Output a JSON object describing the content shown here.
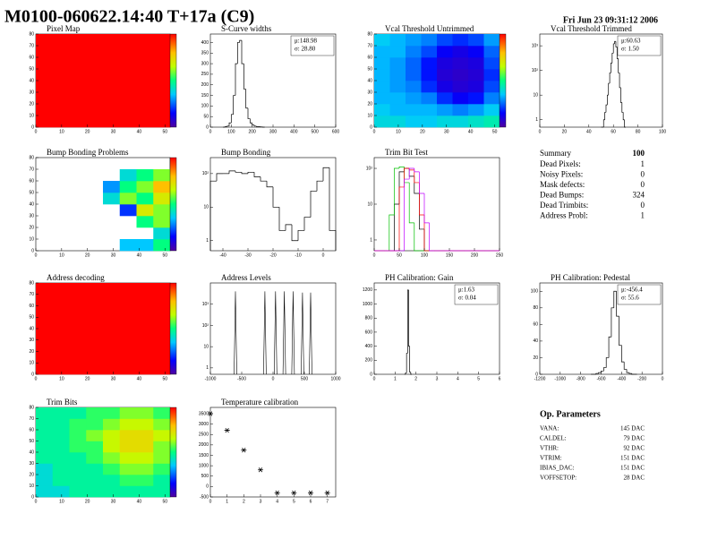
{
  "header": {
    "title": "M0100-060622.14:40 T+17a (C9)",
    "date": "Fri Jun 23 09:31:12 2006"
  },
  "chart_data": [
    {
      "type": "heatmap",
      "title": "Pixel Map",
      "xlim": [
        0,
        52
      ],
      "ylim": [
        0,
        80
      ],
      "xticks": [
        0,
        10,
        20,
        30,
        40,
        50
      ],
      "yticks": [
        0,
        10,
        20,
        30,
        40,
        50,
        60,
        70,
        80
      ],
      "zlim": [
        0,
        10
      ],
      "matrix": [
        [
          10
        ]
      ]
    },
    {
      "type": "histogram",
      "title": "S-Curve widths",
      "xlim": [
        0,
        600
      ],
      "ylim": [
        0,
        440
      ],
      "xticks": [
        0,
        100,
        200,
        300,
        400,
        500,
        600
      ],
      "yticks": [
        0,
        50,
        100,
        150,
        200,
        250,
        300,
        350,
        400
      ],
      "log": false,
      "stats": [
        "μ:148.98",
        "σ: 28.80"
      ],
      "bins": [
        60,
        70,
        80,
        90,
        100,
        110,
        120,
        130,
        140,
        150,
        160,
        170,
        180,
        190,
        200,
        210,
        220,
        230,
        240,
        250,
        260
      ],
      "values": [
        0,
        2,
        5,
        20,
        60,
        150,
        300,
        400,
        410,
        300,
        180,
        90,
        40,
        20,
        10,
        5,
        3,
        2,
        1,
        0
      ]
    },
    {
      "type": "heatmap",
      "title": "Vcal Threshold Untrimmed",
      "xlim": [
        0,
        52
      ],
      "ylim": [
        0,
        80
      ],
      "xticks": [
        0,
        10,
        20,
        30,
        40,
        50
      ],
      "yticks": [
        0,
        10,
        20,
        30,
        40,
        50,
        60,
        70,
        80
      ],
      "zlim": [
        70,
        250
      ],
      "matrix": [
        [
          140,
          140,
          135,
          135,
          140,
          140,
          145,
          150
        ],
        [
          135,
          130,
          130,
          130,
          125,
          120,
          125,
          135
        ],
        [
          130,
          130,
          125,
          120,
          105,
          95,
          100,
          120
        ],
        [
          130,
          125,
          120,
          105,
          90,
          85,
          88,
          110
        ],
        [
          130,
          125,
          115,
          100,
          85,
          82,
          85,
          105
        ],
        [
          130,
          125,
          115,
          100,
          88,
          85,
          88,
          110
        ],
        [
          130,
          130,
          120,
          110,
          95,
          90,
          95,
          115
        ],
        [
          135,
          130,
          125,
          120,
          110,
          105,
          110,
          125
        ]
      ]
    },
    {
      "type": "histogram",
      "title": "Vcal Threshold Trimmed",
      "xlim": [
        0,
        100
      ],
      "ylim": [
        0.5,
        3000
      ],
      "xticks": [
        0,
        20,
        40,
        60,
        80,
        100
      ],
      "yticks": [
        1,
        10,
        {
          "value": 100,
          "label": "10²"
        },
        {
          "value": 1000,
          "label": "10³"
        }
      ],
      "log": true,
      "stats": [
        "μ:60.63",
        "σ: 1.50"
      ],
      "bins": [
        50,
        51,
        52,
        53,
        54,
        55,
        56,
        57,
        58,
        59,
        60,
        61,
        62,
        63,
        64,
        65,
        66,
        67,
        68,
        69,
        70
      ],
      "values": [
        0,
        0,
        1,
        2,
        4,
        10,
        30,
        80,
        200,
        500,
        1200,
        1500,
        900,
        300,
        80,
        20,
        5,
        2,
        1,
        0
      ]
    },
    {
      "type": "heatmap",
      "title": "Bump Bonding Problems",
      "xlim": [
        0,
        52
      ],
      "ylim": [
        0,
        80
      ],
      "xticks": [
        0,
        10,
        20,
        30,
        40,
        50
      ],
      "yticks": [
        0,
        10,
        20,
        30,
        40,
        50,
        60,
        70,
        80
      ],
      "zlim": [
        0,
        1
      ],
      "matrix": [
        [
          null,
          null,
          null,
          null,
          null,
          0.35,
          0.35,
          0.5
        ],
        [
          null,
          null,
          null,
          null,
          null,
          null,
          null,
          0.4
        ],
        [
          null,
          null,
          null,
          null,
          null,
          null,
          0.5,
          0.6
        ],
        [
          null,
          null,
          null,
          null,
          null,
          0.2,
          0.7,
          0.6
        ],
        [
          null,
          null,
          null,
          null,
          0.4,
          0.6,
          0.5,
          0.7
        ],
        [
          null,
          null,
          null,
          null,
          0.3,
          0.5,
          0.6,
          0.8
        ],
        [
          null,
          null,
          null,
          null,
          null,
          0.4,
          0.5,
          0.6
        ],
        [
          null,
          null,
          null,
          null,
          null,
          null,
          null,
          null
        ]
      ]
    },
    {
      "type": "histogram",
      "title": "Bump Bonding",
      "xlim": [
        -45,
        5
      ],
      "ylim": [
        0.5,
        300
      ],
      "xticks": [
        -40,
        -30,
        -20,
        -10,
        0
      ],
      "yticks": [
        1,
        10,
        {
          "value": 100,
          "label": "10²"
        }
      ],
      "log": true,
      "bins": [
        -45,
        -42.5,
        -40,
        -37.5,
        -35,
        -32.5,
        -30,
        -27.5,
        -25,
        -22.5,
        -20,
        -17.5,
        -15,
        -12.5,
        -10,
        -7.5,
        -5,
        -2.5,
        0,
        2.5,
        5
      ],
      "values": [
        60,
        100,
        100,
        120,
        110,
        100,
        110,
        80,
        60,
        40,
        10,
        2,
        3,
        1,
        2,
        5,
        30,
        60,
        150,
        2
      ]
    },
    {
      "type": "histogram",
      "title": "Trim Bit Test",
      "xlim": [
        0,
        250
      ],
      "ylim": [
        0.5,
        200
      ],
      "xticks": [
        0,
        50,
        100,
        150,
        200,
        250
      ],
      "yticks": [
        1,
        10,
        {
          "value": 100,
          "label": "10²"
        }
      ],
      "log": true,
      "bins": [
        0,
        10,
        20,
        30,
        40,
        50,
        60,
        70,
        80,
        90,
        100,
        110,
        120,
        130,
        140,
        150,
        160,
        170,
        180,
        190,
        200,
        210,
        220,
        230,
        240,
        250
      ],
      "series": [
        {
          "color": "#000000",
          "values": [
            0,
            0,
            0,
            0,
            10,
            80,
            100,
            60,
            20,
            2,
            0,
            0,
            0,
            0,
            0,
            0,
            0,
            0,
            0,
            0,
            0,
            0,
            0,
            0,
            0
          ]
        },
        {
          "color": "#00c000",
          "values": [
            0,
            0,
            0,
            5,
            100,
            110,
            40,
            3,
            0,
            0,
            0,
            0,
            0,
            0,
            0,
            0,
            0,
            0,
            0,
            0,
            0,
            0,
            0,
            0,
            0
          ]
        },
        {
          "color": "#ff0000",
          "values": [
            0,
            0,
            0,
            0,
            0,
            30,
            100,
            90,
            40,
            5,
            0,
            0,
            0,
            0,
            0,
            0,
            0,
            0,
            0,
            0,
            0,
            0,
            0,
            0,
            0
          ]
        },
        {
          "color": "#c000ff",
          "values": [
            0,
            0,
            0,
            0,
            0,
            0,
            50,
            100,
            80,
            20,
            3,
            0,
            0,
            0,
            0,
            0,
            0,
            0,
            0,
            0,
            0,
            0,
            0,
            0,
            0
          ]
        }
      ]
    },
    {
      "type": "heatmap",
      "title": "Address decoding",
      "xlim": [
        0,
        52
      ],
      "ylim": [
        0,
        80
      ],
      "xticks": [
        0,
        10,
        20,
        30,
        40,
        50
      ],
      "yticks": [
        0,
        10,
        20,
        30,
        40,
        50,
        60,
        70,
        80
      ],
      "zlim": [
        0,
        1
      ],
      "matrix": [
        [
          1
        ]
      ]
    },
    {
      "type": "spikes",
      "title": "Address Levels",
      "xlim": [
        -1000,
        1000
      ],
      "ylim": [
        0.5,
        10000
      ],
      "xticks": [
        -1000,
        -500,
        0,
        500,
        1000
      ],
      "yticks": [
        1,
        10,
        {
          "value": 100,
          "label": "10²"
        },
        {
          "value": 1000,
          "label": "10³"
        }
      ],
      "log": true,
      "x": [
        -600,
        -130,
        40,
        180,
        320,
        470,
        600
      ],
      "values": [
        4000,
        4000,
        4000,
        4000,
        4000,
        3500,
        3500
      ]
    },
    {
      "type": "histogram",
      "title": "PH Calibration: Gain",
      "xlim": [
        0,
        6
      ],
      "ylim": [
        0,
        1300
      ],
      "xticks": [
        0,
        1,
        2,
        3,
        4,
        5,
        6
      ],
      "yticks": [
        0,
        200,
        400,
        600,
        800,
        1000,
        1200
      ],
      "log": false,
      "stats": [
        "μ:1.63",
        "σ: 0.04"
      ],
      "bins": [
        1.45,
        1.5,
        1.55,
        1.6,
        1.65,
        1.7,
        1.75,
        1.8
      ],
      "values": [
        0,
        20,
        300,
        1200,
        400,
        30,
        0
      ]
    },
    {
      "type": "histogram",
      "title": "PH Calibration: Pedestal",
      "xlim": [
        -1200,
        0
      ],
      "ylim": [
        0,
        110
      ],
      "xticks": [
        -1200,
        -1000,
        -800,
        -600,
        -400,
        -200,
        0
      ],
      "yticks": [
        0,
        20,
        40,
        60,
        80,
        100
      ],
      "log": false,
      "stats": [
        "μ:-456.4",
        "σ: 55.6"
      ],
      "bins": [
        -700,
        -675,
        -650,
        -625,
        -600,
        -575,
        -550,
        -525,
        -500,
        -475,
        -450,
        -425,
        -400,
        -375,
        -350,
        -325,
        -300,
        -275,
        -250
      ],
      "values": [
        0,
        0,
        1,
        2,
        4,
        8,
        20,
        45,
        80,
        100,
        70,
        35,
        15,
        6,
        2,
        1,
        0,
        0
      ]
    },
    {
      "type": "heatmap",
      "title": "Trim Bits",
      "xlim": [
        0,
        52
      ],
      "ylim": [
        0,
        80
      ],
      "xticks": [
        0,
        10,
        20,
        30,
        40,
        50
      ],
      "yticks": [
        0,
        10,
        20,
        30,
        40,
        50,
        60,
        70,
        80
      ],
      "zlim": [
        0,
        15
      ],
      "matrix": [
        [
          6,
          6,
          7,
          7,
          7,
          7,
          7,
          7
        ],
        [
          6,
          7,
          7,
          7,
          7,
          8,
          8,
          7
        ],
        [
          6,
          7,
          7,
          7,
          8,
          9,
          9,
          8
        ],
        [
          7,
          7,
          7,
          8,
          9,
          10,
          10,
          9
        ],
        [
          7,
          7,
          8,
          8,
          10,
          11,
          11,
          9
        ],
        [
          7,
          7,
          8,
          9,
          10,
          11,
          11,
          10
        ],
        [
          7,
          7,
          8,
          8,
          9,
          10,
          10,
          9
        ],
        [
          7,
          7,
          7,
          8,
          8,
          9,
          9,
          8
        ]
      ]
    },
    {
      "type": "scatter",
      "title": "Temperature calibration",
      "xlim": [
        0,
        7.5
      ],
      "ylim": [
        -500,
        3800
      ],
      "xticks": [
        0,
        1,
        2,
        3,
        4,
        5,
        6,
        7
      ],
      "yticks": [
        -500,
        0,
        500,
        1000,
        1500,
        2000,
        2500,
        3000,
        3500
      ],
      "x": [
        0,
        1,
        2,
        3,
        4,
        5,
        6,
        7
      ],
      "values": [
        3500,
        2700,
        1750,
        800,
        -300,
        -300,
        -300,
        -300
      ]
    }
  ],
  "summary": {
    "title": "Summary",
    "total": "100",
    "rows": [
      [
        "Dead Pixels:",
        "1"
      ],
      [
        "Noisy Pixels:",
        "0"
      ],
      [
        "Mask defects:",
        "0"
      ],
      [
        "Dead Bumps:",
        "324"
      ],
      [
        "Dead Trimbits:",
        "0"
      ],
      [
        "Address Probl:",
        "1"
      ]
    ]
  },
  "op_parameters": {
    "title": "Op. Parameters",
    "rows": [
      [
        "VANA:",
        "145 DAC"
      ],
      [
        "CALDEL:",
        "79 DAC"
      ],
      [
        "VTHR:",
        "92 DAC"
      ],
      [
        "VTRIM:",
        "151 DAC"
      ],
      [
        "IBIAS_DAC:",
        "151 DAC"
      ],
      [
        "VOFFSETOP:",
        "28 DAC"
      ]
    ]
  }
}
